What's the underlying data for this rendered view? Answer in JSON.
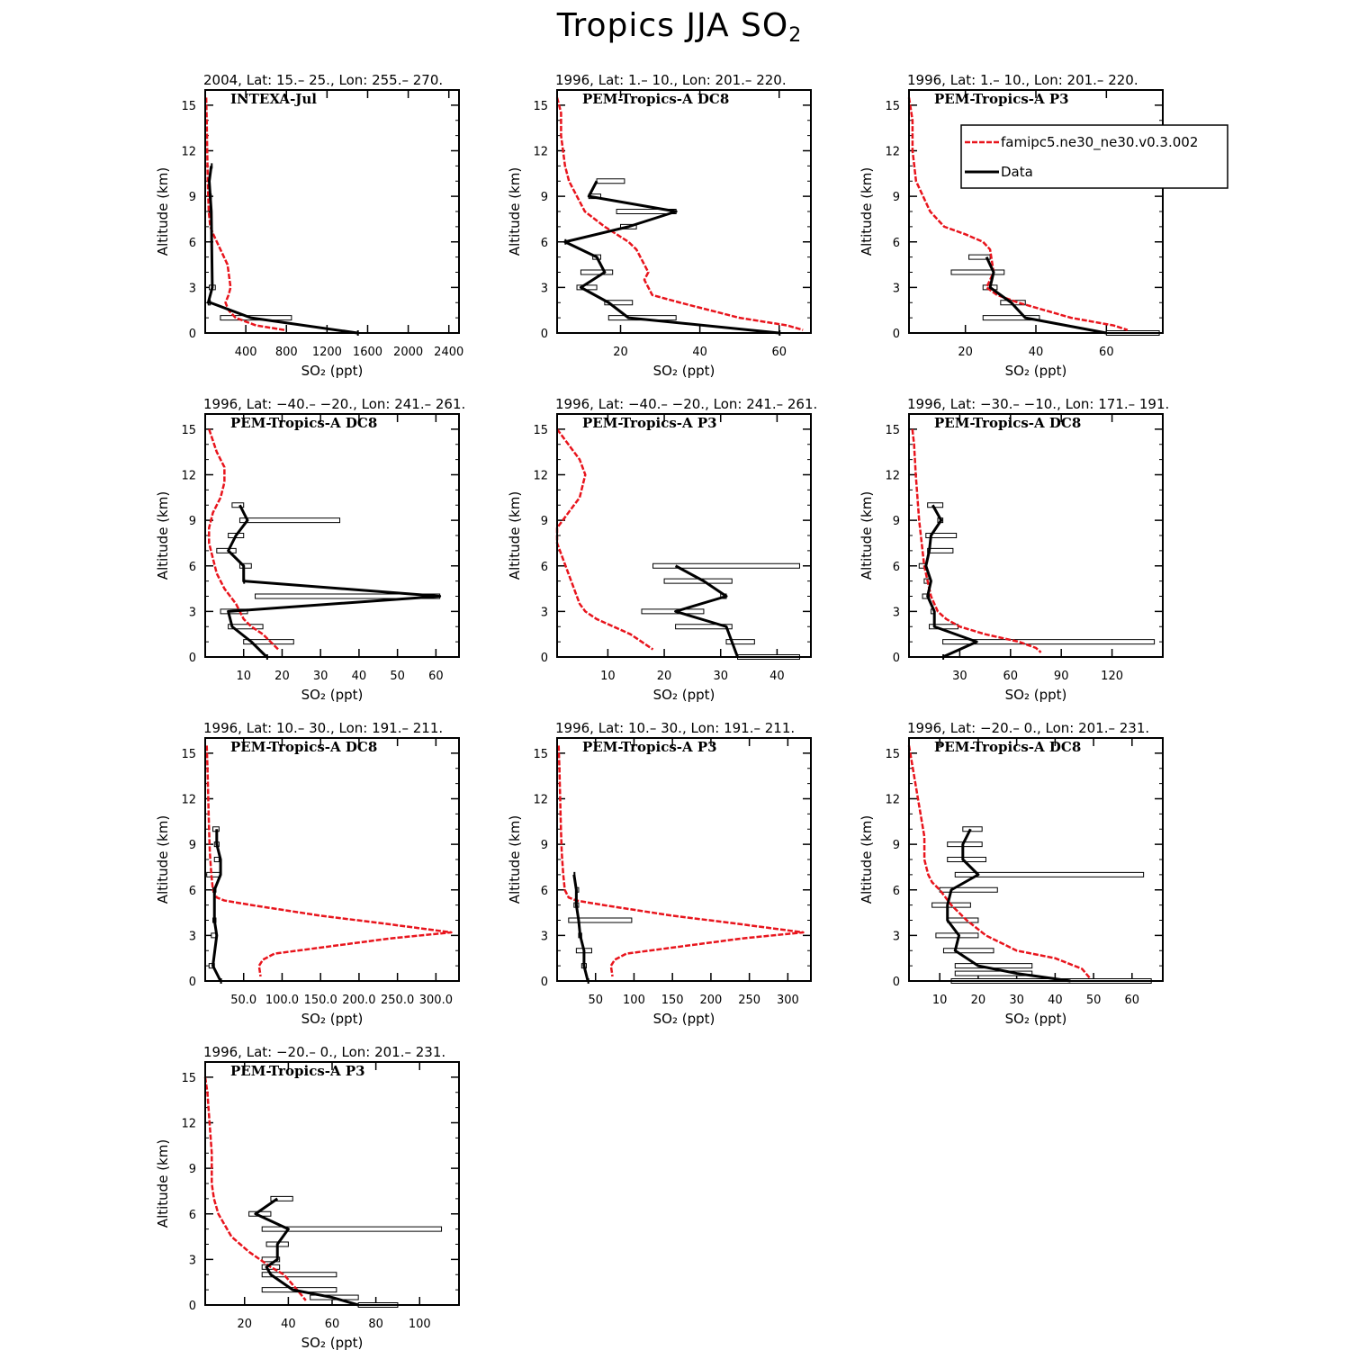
{
  "page": {
    "title": "Tropics JJA SO",
    "title_sub": "2"
  },
  "legend": {
    "model_label": "famipc5.ne30_ne30.v0.3.002",
    "data_label": "Data",
    "model_color": "#e8141c",
    "data_color": "#000000"
  },
  "chart_data": [
    {
      "type": "line",
      "title": "2004, Lat: 15.– 25., Lon: 255.– 270.",
      "campaign": "INTEXA-Jul",
      "xlabel": "SO₂ (ppt)",
      "ylabel": "Altitude (km)",
      "xlim": [
        0,
        2500
      ],
      "ylim": [
        0,
        16
      ],
      "xticks": [
        400,
        800,
        1200,
        1600,
        2000,
        2400
      ],
      "xtick_labels": [
        "400",
        "800",
        "1200",
        "1600",
        "2000",
        "2400"
      ],
      "yticks": [
        0,
        3,
        6,
        9,
        12,
        15
      ],
      "ytick_labels": [
        "0",
        "3",
        "6",
        "9",
        "12",
        "15"
      ],
      "model": {
        "x": [
          10,
          15,
          20,
          25,
          35,
          50,
          80,
          150,
          220,
          250,
          230,
          200,
          230,
          300,
          500,
          780
        ],
        "y": [
          15.5,
          14,
          12,
          10,
          8,
          7,
          6.5,
          5.5,
          4.5,
          3,
          2.5,
          2,
          1.5,
          1,
          0.5,
          0.2
        ]
      },
      "data": {
        "x": [
          60,
          40,
          50,
          60,
          70,
          30,
          50,
          450,
          1500
        ],
        "y": [
          11,
          10,
          9,
          8,
          3,
          2,
          2,
          1,
          0
        ],
        "err_min": [
          60,
          40,
          40,
          40,
          40,
          30,
          30,
          150,
          1500
        ],
        "err_max": [
          60,
          40,
          60,
          50,
          100,
          50,
          50,
          850,
          1500
        ]
      }
    },
    {
      "type": "line",
      "title": "1996, Lat: 1.– 10., Lon: 201.– 220.",
      "campaign": "PEM-Tropics-A DC8",
      "xlabel": "SO₂ (ppt)",
      "ylabel": "Altitude (km)",
      "xlim": [
        4,
        68
      ],
      "ylim": [
        0,
        16
      ],
      "xticks": [
        20,
        40,
        60
      ],
      "xtick_labels": [
        "20",
        "40",
        "60"
      ],
      "yticks": [
        0,
        3,
        6,
        9,
        12,
        15
      ],
      "ytick_labels": [
        "0",
        "3",
        "6",
        "9",
        "12",
        "15"
      ],
      "model": {
        "x": [
          4,
          5,
          5,
          6,
          7,
          9,
          11,
          16,
          22,
          24,
          27,
          26,
          28,
          35,
          50,
          62,
          66
        ],
        "y": [
          15.5,
          14.5,
          13,
          11,
          10,
          9,
          8,
          7,
          6,
          5.5,
          4,
          3.5,
          2.5,
          2,
          1,
          0.5,
          0.2
        ]
      },
      "data": {
        "x": [
          14,
          12,
          34,
          22,
          6,
          14,
          16,
          10,
          17,
          22,
          60
        ],
        "y": [
          10,
          9,
          8,
          7,
          6,
          5,
          4,
          3,
          2,
          1,
          0
        ],
        "err_min": [
          14,
          12,
          19,
          20,
          6,
          13,
          10,
          9,
          16,
          17,
          60
        ],
        "err_max": [
          21,
          15,
          34,
          24,
          6,
          15,
          18,
          14,
          23,
          34,
          60
        ]
      }
    },
    {
      "type": "line",
      "title": "1996, Lat: 1.– 10., Lon: 201.– 220.",
      "campaign": "PEM-Tropics-A P3",
      "xlabel": "SO₂ (ppt)",
      "ylabel": "Altitude (km)",
      "xlim": [
        4,
        76
      ],
      "ylim": [
        0,
        16
      ],
      "xticks": [
        20,
        40,
        60
      ],
      "xtick_labels": [
        "20",
        "40",
        "60"
      ],
      "yticks": [
        0,
        3,
        6,
        9,
        12,
        15
      ],
      "ytick_labels": [
        "0",
        "3",
        "6",
        "9",
        "12",
        "15"
      ],
      "model": {
        "x": [
          4,
          5,
          5,
          6,
          8,
          10,
          14,
          20,
          25,
          27,
          28,
          26,
          29,
          35,
          50,
          62,
          66
        ],
        "y": [
          15.5,
          14,
          12,
          10,
          9,
          8,
          7,
          6.5,
          6,
          5.5,
          4,
          3,
          2.5,
          2,
          1,
          0.5,
          0.2
        ]
      },
      "data": {
        "x": [
          26,
          28,
          27,
          33,
          37,
          60
        ],
        "y": [
          5,
          4,
          3,
          2,
          1,
          0
        ],
        "err_min": [
          21,
          16,
          25,
          30,
          25,
          60
        ],
        "err_max": [
          27,
          31,
          29,
          37,
          41,
          75
        ]
      }
    },
    {
      "type": "line",
      "title": "1996, Lat: −40.– −20., Lon: 241.– 261.",
      "campaign": "PEM-Tropics-A DC8",
      "xlabel": "SO₂ (ppt)",
      "ylabel": "Altitude (km)",
      "xlim": [
        0,
        66
      ],
      "ylim": [
        0,
        16
      ],
      "xticks": [
        10,
        20,
        30,
        40,
        50,
        60
      ],
      "xtick_labels": [
        "10",
        "20",
        "30",
        "40",
        "50",
        "60"
      ],
      "yticks": [
        0,
        3,
        6,
        9,
        12,
        15
      ],
      "ytick_labels": [
        "0",
        "3",
        "6",
        "9",
        "12",
        "15"
      ],
      "model": {
        "x": [
          1,
          3,
          5,
          5,
          4,
          2,
          1,
          1,
          2,
          3,
          5,
          8,
          10,
          12,
          15,
          17,
          19
        ],
        "y": [
          15,
          13.5,
          12.5,
          11.5,
          10.5,
          9.5,
          8.5,
          7.5,
          6.5,
          5.5,
          4.5,
          3.5,
          2.5,
          2,
          1.5,
          1,
          0.5
        ]
      },
      "data": {
        "x": [
          9,
          11,
          8,
          6,
          10,
          10,
          61,
          6,
          7,
          12,
          16
        ],
        "y": [
          10,
          9,
          8,
          7,
          6,
          5,
          4,
          3,
          2,
          1,
          0
        ],
        "err_min": [
          7,
          9,
          6,
          3,
          9,
          10,
          13,
          4,
          6,
          10,
          16
        ],
        "err_max": [
          10,
          35,
          10,
          8,
          12,
          10,
          61,
          11,
          15,
          23,
          16
        ]
      }
    },
    {
      "type": "line",
      "title": "1996, Lat: −40.– −20., Lon: 241.– 261.",
      "campaign": "PEM-Tropics-A P3",
      "xlabel": "SO₂ (ppt)",
      "ylabel": "Altitude (km)",
      "xlim": [
        1,
        46
      ],
      "ylim": [
        0,
        16
      ],
      "xticks": [
        10,
        20,
        30,
        40
      ],
      "xtick_labels": [
        "10",
        "20",
        "30",
        "40"
      ],
      "yticks": [
        0,
        3,
        6,
        9,
        12,
        15
      ],
      "ytick_labels": [
        "0",
        "3",
        "6",
        "9",
        "12",
        "15"
      ],
      "model": {
        "x": [
          1,
          3,
          5,
          6,
          5,
          3,
          1,
          1,
          2,
          3,
          4,
          5,
          6,
          8,
          11,
          14,
          18
        ],
        "y": [
          15,
          14,
          13,
          12,
          10.5,
          9.5,
          8.5,
          7.5,
          6.5,
          5.5,
          4.5,
          3.5,
          3,
          2.5,
          2,
          1.5,
          0.5
        ]
      },
      "data": {
        "x": [
          22,
          27,
          31,
          22,
          31,
          32,
          33
        ],
        "y": [
          6,
          5,
          4,
          3,
          2,
          1,
          0
        ],
        "err_min": [
          18,
          20,
          30,
          16,
          22,
          31,
          33
        ],
        "err_max": [
          44,
          32,
          31,
          27,
          32,
          36,
          44
        ]
      }
    },
    {
      "type": "line",
      "title": "1996, Lat: −30.– −10., Lon: 171.– 191.",
      "campaign": "PEM-Tropics-A DC8",
      "xlabel": "SO₂ (ppt)",
      "ylabel": "Altitude (km)",
      "xlim": [
        0,
        150
      ],
      "ylim": [
        0,
        16
      ],
      "xticks": [
        30,
        60,
        90,
        120
      ],
      "xtick_labels": [
        "30",
        "60",
        "90",
        "120"
      ],
      "yticks": [
        0,
        3,
        6,
        9,
        12,
        15
      ],
      "ytick_labels": [
        "0",
        "3",
        "6",
        "9",
        "12",
        "15"
      ],
      "model": {
        "x": [
          2,
          3,
          4,
          5,
          6,
          7,
          8,
          9,
          11,
          13,
          17,
          22,
          30,
          45,
          65,
          75,
          78
        ],
        "y": [
          15,
          14,
          12,
          10.5,
          9,
          8,
          7,
          6,
          5,
          4,
          3,
          2.5,
          2,
          1.5,
          1,
          0.6,
          0.3
        ]
      },
      "data": {
        "x": [
          14,
          19,
          13,
          12,
          10,
          13,
          11,
          15,
          15,
          40,
          20
        ],
        "y": [
          10,
          9,
          8,
          7,
          6,
          5,
          4,
          3,
          2,
          1,
          0
        ],
        "err_min": [
          11,
          17,
          10,
          11,
          6,
          9,
          8,
          13,
          12,
          20,
          20
        ],
        "err_max": [
          20,
          20,
          28,
          26,
          10,
          13,
          12,
          15,
          29,
          145,
          20
        ]
      }
    },
    {
      "type": "line",
      "title": "1996, Lat: 10.– 30., Lon: 191.– 211.",
      "campaign": "PEM-Tropics-A DC8",
      "xlabel": "SO₂ (ppt)",
      "ylabel": "Altitude (km)",
      "xlim": [
        0,
        330
      ],
      "ylim": [
        0,
        16
      ],
      "xticks": [
        50,
        100,
        150,
        200,
        250,
        300
      ],
      "xtick_labels": [
        "50.0",
        "100.0",
        "150.0",
        "200.0",
        "250.0",
        "300.0"
      ],
      "yticks": [
        0,
        3,
        6,
        9,
        12,
        15
      ],
      "ytick_labels": [
        "0",
        "3",
        "6",
        "9",
        "12",
        "15"
      ],
      "model": {
        "x": [
          2,
          3,
          4,
          5,
          6,
          8,
          10,
          15,
          25,
          60,
          150,
          230,
          320,
          240,
          150,
          90,
          75,
          70,
          72
        ],
        "y": [
          15.5,
          14,
          12,
          10,
          8.5,
          7,
          6,
          5.5,
          5.3,
          5,
          4.3,
          3.8,
          3.2,
          2.8,
          2.2,
          1.8,
          1.4,
          1,
          0.3
        ]
      },
      "data": {
        "x": [
          15,
          15,
          20,
          20,
          12,
          12,
          15,
          10,
          20
        ],
        "y": [
          10,
          9,
          8,
          7,
          6,
          4,
          3,
          1,
          0
        ],
        "err_min": [
          10,
          12,
          12,
          2,
          10,
          10,
          8,
          5,
          20
        ],
        "err_max": [
          18,
          18,
          18,
          20,
          14,
          14,
          14,
          12,
          20
        ]
      }
    },
    {
      "type": "line",
      "title": "1996, Lat: 10.– 30., Lon: 191.– 211.",
      "campaign": "PEM-Tropics-A P3",
      "xlabel": "SO₂ (ppt)",
      "ylabel": "Altitude (km)",
      "xlim": [
        0,
        330
      ],
      "ylim": [
        0,
        16
      ],
      "xticks": [
        50,
        100,
        150,
        200,
        250,
        300
      ],
      "xtick_labels": [
        "50",
        "100",
        "150",
        "200",
        "250",
        "300"
      ],
      "yticks": [
        0,
        3,
        6,
        9,
        12,
        15
      ],
      "ytick_labels": [
        "0",
        "3",
        "6",
        "9",
        "12",
        "15"
      ],
      "model": {
        "x": [
          2,
          3,
          4,
          5,
          6,
          8,
          10,
          15,
          25,
          60,
          150,
          230,
          320,
          240,
          150,
          90,
          75,
          70,
          72
        ],
        "y": [
          15.5,
          14,
          12,
          10,
          8.5,
          7,
          6,
          5.5,
          5.3,
          5,
          4.3,
          3.8,
          3.2,
          2.8,
          2.2,
          1.8,
          1.4,
          1,
          0.3
        ]
      },
      "data": {
        "x": [
          22,
          25,
          25,
          28,
          30,
          35,
          35,
          40
        ],
        "y": [
          7,
          6,
          5,
          4,
          3,
          2,
          1,
          0
        ],
        "err_min": [
          22,
          25,
          22,
          15,
          28,
          25,
          32,
          40
        ],
        "err_max": [
          22,
          28,
          28,
          97,
          32,
          45,
          38,
          40
        ]
      }
    },
    {
      "type": "line",
      "title": "1996, Lat: −20.– 0., Lon: 201.– 231.",
      "campaign": "PEM-Tropics-A DC8",
      "xlabel": "SO₂ (ppt)",
      "ylabel": "Altitude (km)",
      "xlim": [
        2,
        68
      ],
      "ylim": [
        0,
        16
      ],
      "xticks": [
        10,
        20,
        30,
        40,
        50,
        60
      ],
      "xtick_labels": [
        "10",
        "20",
        "30",
        "40",
        "50",
        "60"
      ],
      "yticks": [
        0,
        3,
        6,
        9,
        12,
        15
      ],
      "ytick_labels": [
        "0",
        "3",
        "6",
        "9",
        "12",
        "15"
      ],
      "model": {
        "x": [
          2,
          3,
          4,
          5,
          6,
          6,
          7,
          8,
          10,
          13,
          17,
          22,
          30,
          40,
          47,
          49
        ],
        "y": [
          15.5,
          14,
          12.5,
          11,
          9.5,
          8,
          7,
          6.5,
          6,
          5,
          4,
          3,
          2,
          1.5,
          0.8,
          0.2
        ]
      },
      "data": {
        "x": [
          18,
          16,
          16,
          20,
          13,
          12,
          12,
          15,
          14,
          20,
          30,
          44
        ],
        "y": [
          10,
          9,
          8,
          7,
          6,
          5,
          4,
          3,
          2,
          1,
          0.5,
          0
        ],
        "err_min": [
          16,
          12,
          12,
          14,
          10,
          8,
          12,
          9,
          11,
          14,
          14,
          13
        ],
        "err_max": [
          21,
          21,
          22,
          63,
          25,
          18,
          20,
          20,
          24,
          34,
          34,
          65
        ]
      }
    },
    {
      "type": "line",
      "title": "1996, Lat: −20.– 0., Lon: 201.– 231.",
      "campaign": "PEM-Tropics-A P3",
      "xlabel": "SO₂ (ppt)",
      "ylabel": "Altitude (km)",
      "xlim": [
        2,
        118
      ],
      "ylim": [
        0,
        16
      ],
      "xticks": [
        20,
        40,
        60,
        80,
        100
      ],
      "xtick_labels": [
        "20",
        "40",
        "60",
        "80",
        "100"
      ],
      "yticks": [
        0,
        3,
        6,
        9,
        12,
        15
      ],
      "ytick_labels": [
        "0",
        "3",
        "6",
        "9",
        "12",
        "15"
      ],
      "model": {
        "x": [
          2,
          3,
          4,
          5,
          5,
          6,
          8,
          10,
          14,
          18,
          22,
          27,
          32,
          38,
          44,
          48
        ],
        "y": [
          15,
          14,
          12,
          10,
          8,
          7,
          6,
          5.5,
          4.5,
          4,
          3.5,
          3,
          2.5,
          2,
          1,
          0.3
        ]
      },
      "data": {
        "x": [
          35,
          25,
          40,
          35,
          35,
          30,
          32,
          42,
          60,
          72
        ],
        "y": [
          7,
          6,
          5,
          4,
          3,
          2.5,
          2,
          1,
          0.5,
          0
        ],
        "err_min": [
          32,
          22,
          28,
          30,
          28,
          28,
          28,
          28,
          50,
          72
        ],
        "err_max": [
          42,
          32,
          110,
          40,
          36,
          36,
          62,
          62,
          72,
          90
        ]
      }
    }
  ]
}
